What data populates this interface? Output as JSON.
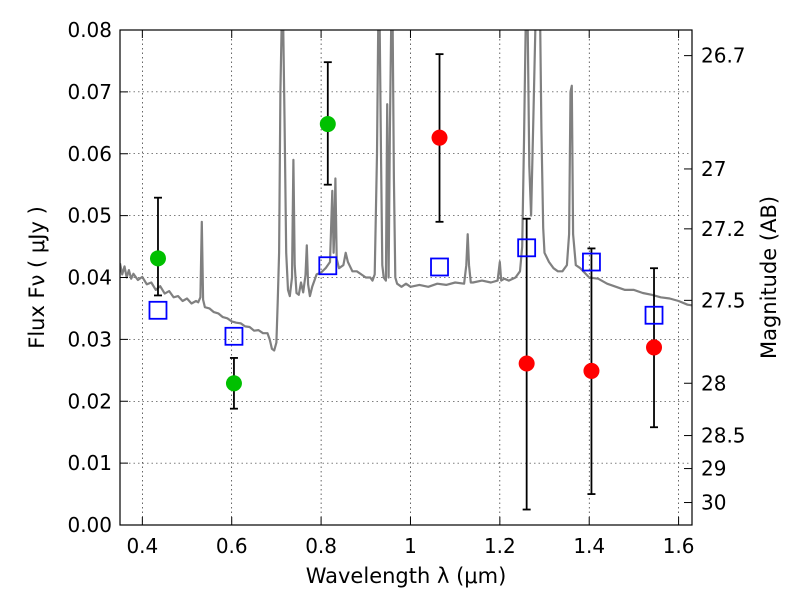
{
  "chart_data": {
    "type": "scatter",
    "xlabel": "Wavelength  λ (μm)",
    "ylabel": "Flux  Fν  ( μJy )",
    "y2label": "Magnitude (AB)",
    "xlim": [
      0.35,
      1.63
    ],
    "ylim": [
      0.0,
      0.08
    ],
    "grid": true,
    "x_ticks": [
      {
        "value": 0.4,
        "label": "0.4"
      },
      {
        "value": 0.6,
        "label": "0.6"
      },
      {
        "value": 0.8,
        "label": "0.8"
      },
      {
        "value": 1.0,
        "label": "1"
      },
      {
        "value": 1.2,
        "label": "1.2"
      },
      {
        "value": 1.4,
        "label": "1.4"
      },
      {
        "value": 1.6,
        "label": "1.6"
      }
    ],
    "y_ticks": [
      {
        "value": 0.0,
        "label": "0.00"
      },
      {
        "value": 0.01,
        "label": "0.01"
      },
      {
        "value": 0.02,
        "label": "0.02"
      },
      {
        "value": 0.03,
        "label": "0.03"
      },
      {
        "value": 0.04,
        "label": "0.04"
      },
      {
        "value": 0.05,
        "label": "0.05"
      },
      {
        "value": 0.06,
        "label": "0.06"
      },
      {
        "value": 0.07,
        "label": "0.07"
      },
      {
        "value": 0.08,
        "label": "0.08"
      }
    ],
    "y2_ticks": [
      {
        "mag": 26.7,
        "label": "26.7"
      },
      {
        "mag": 27.0,
        "label": "27"
      },
      {
        "mag": 27.2,
        "label": "27.2"
      },
      {
        "mag": 27.5,
        "label": "27.5"
      },
      {
        "mag": 28.0,
        "label": "28"
      },
      {
        "mag": 28.5,
        "label": "28.5"
      },
      {
        "mag": 29.0,
        "label": "29"
      },
      {
        "mag": 30.0,
        "label": "30"
      }
    ],
    "series": [
      {
        "kind": "spectrum",
        "color": "#808080",
        "points": [
          [
            0.35,
            0.0423
          ],
          [
            0.355,
            0.0405
          ],
          [
            0.36,
            0.0418
          ],
          [
            0.365,
            0.04
          ],
          [
            0.37,
            0.0412
          ],
          [
            0.375,
            0.0398
          ],
          [
            0.38,
            0.0406
          ],
          [
            0.39,
            0.0396
          ],
          [
            0.4,
            0.0401
          ],
          [
            0.41,
            0.0389
          ],
          [
            0.42,
            0.0392
          ],
          [
            0.43,
            0.038
          ],
          [
            0.44,
            0.0386
          ],
          [
            0.45,
            0.0374
          ],
          [
            0.46,
            0.0378
          ],
          [
            0.47,
            0.0368
          ],
          [
            0.48,
            0.037
          ],
          [
            0.49,
            0.0362
          ],
          [
            0.5,
            0.0366
          ],
          [
            0.51,
            0.0358
          ],
          [
            0.52,
            0.0362
          ],
          [
            0.525,
            0.036
          ],
          [
            0.53,
            0.0368
          ],
          [
            0.533,
            0.049
          ],
          [
            0.536,
            0.0364
          ],
          [
            0.54,
            0.0352
          ],
          [
            0.55,
            0.035
          ],
          [
            0.56,
            0.0344
          ],
          [
            0.57,
            0.0342
          ],
          [
            0.58,
            0.0336
          ],
          [
            0.59,
            0.0334
          ],
          [
            0.6,
            0.0329
          ],
          [
            0.61,
            0.0327
          ],
          [
            0.62,
            0.0326
          ],
          [
            0.63,
            0.0321
          ],
          [
            0.64,
            0.032
          ],
          [
            0.65,
            0.0314
          ],
          [
            0.66,
            0.0315
          ],
          [
            0.67,
            0.031
          ],
          [
            0.68,
            0.031
          ],
          [
            0.685,
            0.03
          ],
          [
            0.69,
            0.0285
          ],
          [
            0.695,
            0.0282
          ],
          [
            0.7,
            0.0295
          ],
          [
            0.703,
            0.036
          ],
          [
            0.706,
            0.044
          ],
          [
            0.709,
            0.07
          ],
          [
            0.712,
            0.082
          ],
          [
            0.715,
            0.082
          ],
          [
            0.718,
            0.066
          ],
          [
            0.722,
            0.044
          ],
          [
            0.726,
            0.038
          ],
          [
            0.73,
            0.037
          ],
          [
            0.735,
            0.04
          ],
          [
            0.738,
            0.059
          ],
          [
            0.741,
            0.042
          ],
          [
            0.745,
            0.0375
          ],
          [
            0.75,
            0.0372
          ],
          [
            0.755,
            0.0392
          ],
          [
            0.76,
            0.0376
          ],
          [
            0.765,
            0.0404
          ],
          [
            0.768,
            0.0452
          ],
          [
            0.771,
            0.0389
          ],
          [
            0.775,
            0.037
          ],
          [
            0.78,
            0.0385
          ],
          [
            0.785,
            0.0395
          ],
          [
            0.79,
            0.0405
          ],
          [
            0.8,
            0.0408
          ],
          [
            0.81,
            0.0415
          ],
          [
            0.815,
            0.042
          ],
          [
            0.82,
            0.0425
          ],
          [
            0.825,
            0.054
          ],
          [
            0.828,
            0.044
          ],
          [
            0.83,
            0.048
          ],
          [
            0.832,
            0.056
          ],
          [
            0.835,
            0.043
          ],
          [
            0.84,
            0.0415
          ],
          [
            0.85,
            0.042
          ],
          [
            0.855,
            0.044
          ],
          [
            0.86,
            0.0425
          ],
          [
            0.87,
            0.041
          ],
          [
            0.88,
            0.041
          ],
          [
            0.89,
            0.0405
          ],
          [
            0.9,
            0.04
          ],
          [
            0.91,
            0.04
          ],
          [
            0.915,
            0.0395
          ],
          [
            0.92,
            0.0405
          ],
          [
            0.925,
            0.06
          ],
          [
            0.928,
            0.082
          ],
          [
            0.931,
            0.082
          ],
          [
            0.934,
            0.06
          ],
          [
            0.937,
            0.042
          ],
          [
            0.94,
            0.04
          ],
          [
            0.945,
            0.0395
          ],
          [
            0.948,
            0.068
          ],
          [
            0.951,
            0.04
          ],
          [
            0.954,
            0.064
          ],
          [
            0.957,
            0.082
          ],
          [
            0.96,
            0.082
          ],
          [
            0.963,
            0.056
          ],
          [
            0.966,
            0.04
          ],
          [
            0.97,
            0.039
          ],
          [
            0.98,
            0.0385
          ],
          [
            0.99,
            0.039
          ],
          [
            1.0,
            0.0385
          ],
          [
            1.02,
            0.0388
          ],
          [
            1.04,
            0.0385
          ],
          [
            1.06,
            0.039
          ],
          [
            1.08,
            0.0388
          ],
          [
            1.1,
            0.0392
          ],
          [
            1.12,
            0.039
          ],
          [
            1.125,
            0.042
          ],
          [
            1.128,
            0.047
          ],
          [
            1.131,
            0.042
          ],
          [
            1.135,
            0.0392
          ],
          [
            1.14,
            0.0392
          ],
          [
            1.16,
            0.0395
          ],
          [
            1.18,
            0.0392
          ],
          [
            1.195,
            0.0395
          ],
          [
            1.2,
            0.0425
          ],
          [
            1.203,
            0.0395
          ],
          [
            1.21,
            0.0398
          ],
          [
            1.22,
            0.0395
          ],
          [
            1.235,
            0.04
          ],
          [
            1.245,
            0.041
          ],
          [
            1.25,
            0.045
          ],
          [
            1.254,
            0.062
          ],
          [
            1.258,
            0.082
          ],
          [
            1.262,
            0.082
          ],
          [
            1.266,
            0.058
          ],
          [
            1.27,
            0.05
          ],
          [
            1.275,
            0.066
          ],
          [
            1.28,
            0.082
          ],
          [
            1.29,
            0.082
          ],
          [
            1.293,
            0.064
          ],
          [
            1.297,
            0.048
          ],
          [
            1.3,
            0.044
          ],
          [
            1.31,
            0.0425
          ],
          [
            1.32,
            0.0415
          ],
          [
            1.33,
            0.041
          ],
          [
            1.34,
            0.041
          ],
          [
            1.35,
            0.042
          ],
          [
            1.355,
            0.047
          ],
          [
            1.358,
            0.07
          ],
          [
            1.361,
            0.071
          ],
          [
            1.364,
            0.047
          ],
          [
            1.37,
            0.042
          ],
          [
            1.38,
            0.0415
          ],
          [
            1.4,
            0.04
          ],
          [
            1.42,
            0.0398
          ],
          [
            1.44,
            0.039
          ],
          [
            1.46,
            0.0385
          ],
          [
            1.48,
            0.038
          ],
          [
            1.5,
            0.038
          ],
          [
            1.52,
            0.0375
          ],
          [
            1.54,
            0.0372
          ],
          [
            1.56,
            0.0368
          ],
          [
            1.58,
            0.0366
          ],
          [
            1.6,
            0.0362
          ],
          [
            1.62,
            0.0356
          ],
          [
            1.63,
            0.0355
          ]
        ]
      },
      {
        "kind": "measurement",
        "color": "#00c000",
        "points": [
          {
            "x": 0.435,
            "y": 0.0431,
            "lo": 0.0371,
            "hi": 0.0529
          },
          {
            "x": 0.605,
            "y": 0.0229,
            "lo": 0.0188,
            "hi": 0.027
          },
          {
            "x": 0.815,
            "y": 0.0648,
            "lo": 0.055,
            "hi": 0.0748
          }
        ]
      },
      {
        "kind": "measurement",
        "color": "#ff0000",
        "points": [
          {
            "x": 1.065,
            "y": 0.0626,
            "lo": 0.049,
            "hi": 0.0761
          },
          {
            "x": 1.26,
            "y": 0.0261,
            "lo": 0.0025,
            "hi": 0.0495
          },
          {
            "x": 1.405,
            "y": 0.0249,
            "lo": 0.005,
            "hi": 0.0447
          },
          {
            "x": 1.545,
            "y": 0.0287,
            "lo": 0.0158,
            "hi": 0.0415
          }
        ]
      },
      {
        "kind": "model",
        "color": "#0000ff",
        "points": [
          {
            "x": 0.435,
            "y": 0.0347
          },
          {
            "x": 0.605,
            "y": 0.0305
          },
          {
            "x": 0.815,
            "y": 0.0419
          },
          {
            "x": 1.065,
            "y": 0.0417
          },
          {
            "x": 1.26,
            "y": 0.0448
          },
          {
            "x": 1.405,
            "y": 0.0425
          },
          {
            "x": 1.545,
            "y": 0.0339
          }
        ]
      }
    ]
  }
}
